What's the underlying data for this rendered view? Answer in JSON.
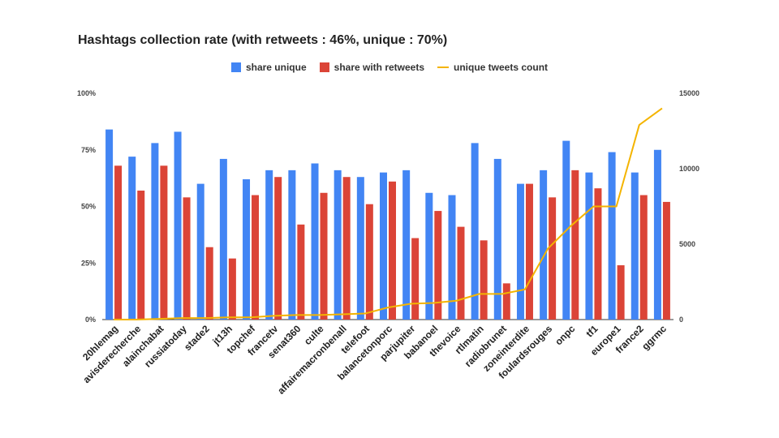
{
  "chart_data": {
    "type": "bar",
    "title": "Hashtags collection rate (with retweets : 46%, unique : 70%)",
    "categories": [
      "20hlemag",
      "avisderecherche",
      "alainchabat",
      "russiatoday",
      "stade2",
      "jt13h",
      "topchef",
      "francetv",
      "senat360",
      "culte",
      "affairemacronbenall",
      "telefoot",
      "balancetonporc",
      "parjupiter",
      "babanoel",
      "thevoice",
      "rtlmatin",
      "radiobrunet",
      "zoneinterdite",
      "foulardsrouges",
      "onpc",
      "tf1",
      "europe1",
      "france2",
      "ggrmc"
    ],
    "series": [
      {
        "name": "share unique",
        "type": "bar",
        "axis": "left",
        "color": "#4285f4",
        "values": [
          84,
          72,
          78,
          83,
          60,
          71,
          62,
          66,
          66,
          69,
          66,
          63,
          65,
          66,
          56,
          55,
          78,
          71,
          60,
          66,
          79,
          65,
          74,
          65,
          75
        ]
      },
      {
        "name": "share with retweets",
        "type": "bar",
        "axis": "left",
        "color": "#db4437",
        "values": [
          68,
          57,
          68,
          54,
          32,
          27,
          55,
          63,
          42,
          56,
          63,
          51,
          61,
          36,
          48,
          41,
          35,
          16,
          60,
          54,
          66,
          58,
          24,
          55,
          52
        ]
      },
      {
        "name": "unique tweets count",
        "type": "line",
        "axis": "right",
        "color": "#f4b400",
        "values": [
          0,
          0,
          50,
          100,
          100,
          150,
          150,
          250,
          300,
          300,
          350,
          400,
          800,
          1050,
          1100,
          1250,
          1700,
          1700,
          2000,
          4700,
          6200,
          7500,
          7500,
          12900,
          14000
        ]
      }
    ],
    "y_left": {
      "min": 0,
      "max": 100,
      "ticks": [
        "0%",
        "25%",
        "50%",
        "75%",
        "100%"
      ]
    },
    "y_right": {
      "min": 0,
      "max": 15000,
      "ticks": [
        "0",
        "5000",
        "10000",
        "15000"
      ]
    },
    "legend_position": "top-center",
    "grid": false
  }
}
